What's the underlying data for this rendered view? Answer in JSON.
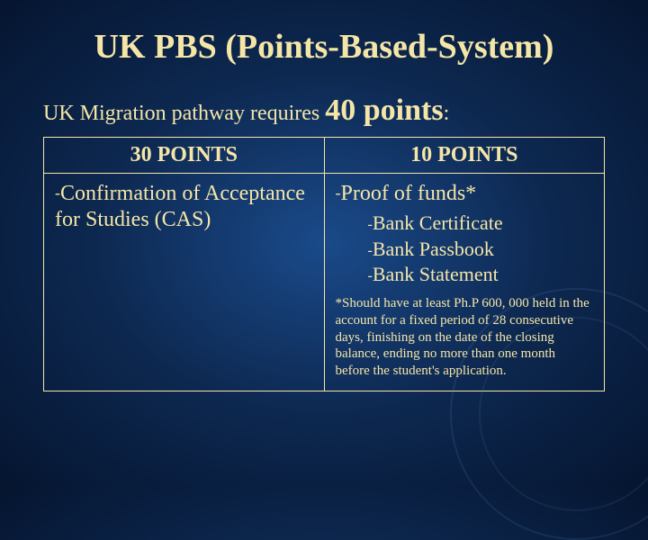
{
  "title": "UK PBS (Points-Based-System)",
  "subtitle_lead": "UK Migration pathway requires ",
  "subtitle_highlight": "40 points",
  "subtitle_colon": ":",
  "table": {
    "border_color": "#f5e6a8",
    "columns": [
      {
        "header": "30 POINTS"
      },
      {
        "header": "10 POINTS"
      }
    ],
    "left_cell": {
      "dash": "-",
      "text": "Confirmation of Acceptance for Studies (CAS)"
    },
    "right_cell": {
      "dash": "-",
      "lead": "Proof of funds*",
      "sub_items": [
        "Bank Certificate",
        "Bank Passbook",
        "Bank Statement"
      ],
      "footnote": "*Should have at least Ph.P 600, 000 held in the account for a fixed period of 28 consecutive days, finishing on the date of the closing balance, ending no more than one month before the student's application."
    }
  },
  "colors": {
    "text": "#f5e6a8",
    "background_inner": "#1a4a8a",
    "background_outer": "#051530"
  },
  "fonts": {
    "title_size_pt": 38,
    "subtitle_size_pt": 24,
    "highlight_size_pt": 34,
    "header_size_pt": 24,
    "cell_size_pt": 24,
    "sublist_size_pt": 22,
    "footnote_size_pt": 15
  }
}
